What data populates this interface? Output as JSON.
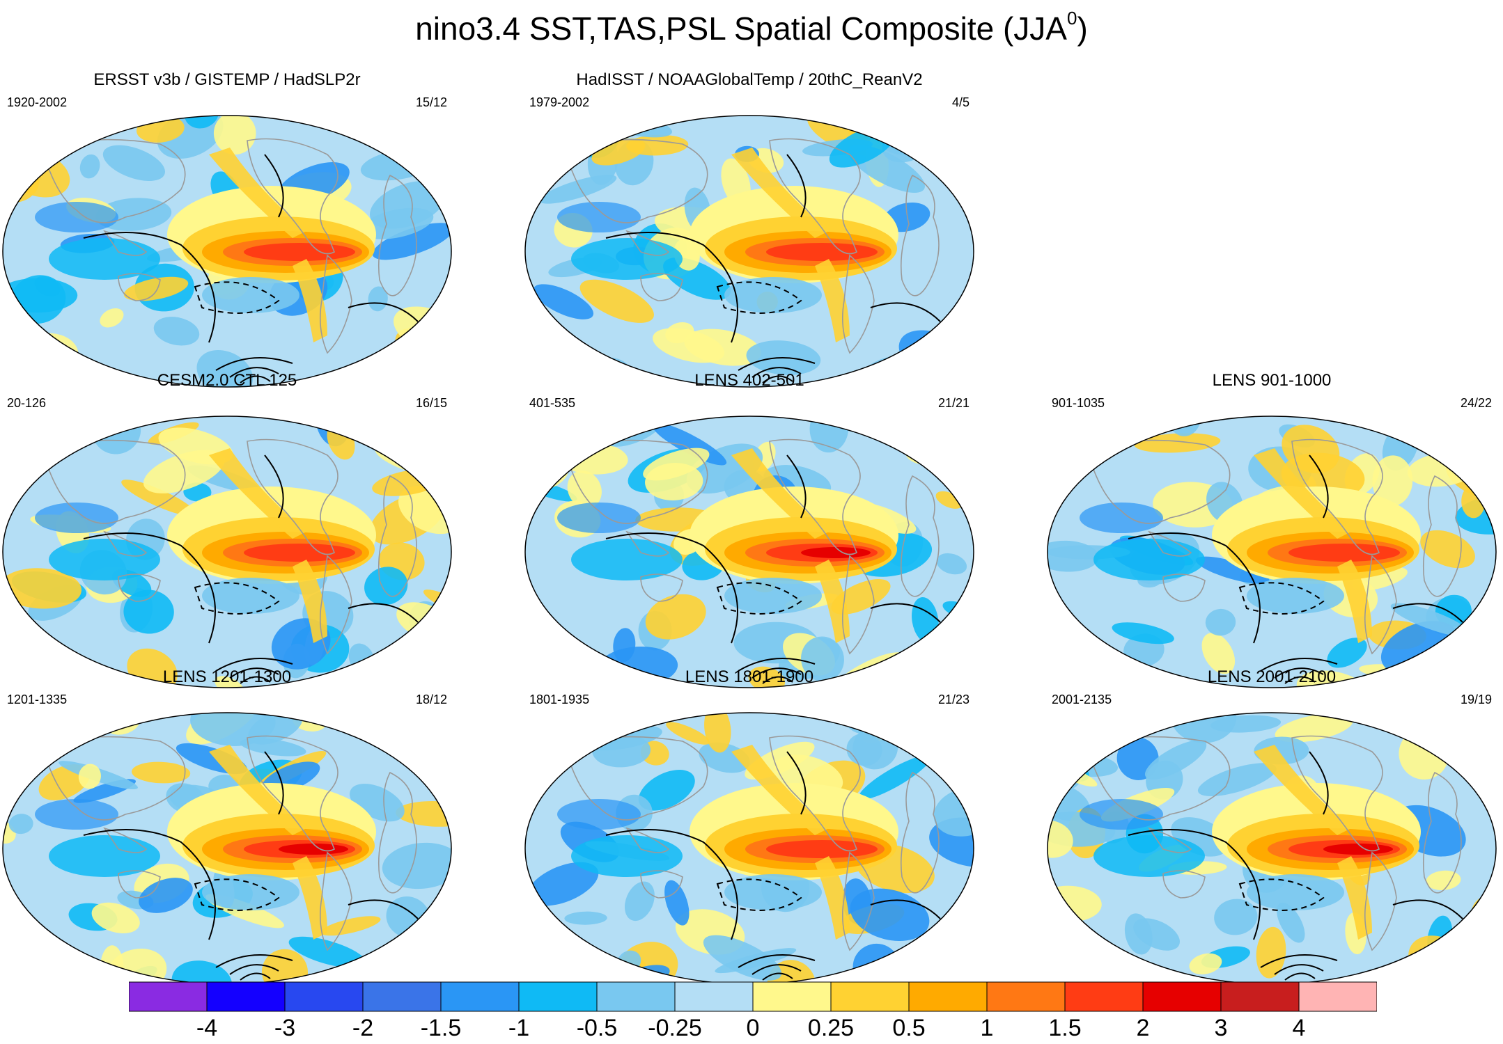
{
  "title": {
    "main": "nino3.4 SST,TAS,PSL Spatial Composite (JJA",
    "superscript": "0",
    "close": ")"
  },
  "panels": [
    {
      "id": "obs1",
      "title": "ERSST v3b / GISTEMP / HadSLP2r",
      "range": "1920-2002",
      "count": "15/12"
    },
    {
      "id": "obs2",
      "title": "HadISST / NOAAGlobalTemp / 20thC_ReanV2",
      "range": "1979-2002",
      "count": "4/5"
    },
    {
      "id": "ctl",
      "title": "CESM2.0 CTL 125",
      "range": "20-126",
      "count": "16/15"
    },
    {
      "id": "lens402",
      "title": "LENS 402-501",
      "range": "401-535",
      "count": "21/21"
    },
    {
      "id": "lens901",
      "title": "LENS 901-1000",
      "range": "901-1035",
      "count": "24/22"
    },
    {
      "id": "lens1201",
      "title": "LENS 1201-1300",
      "range": "1201-1335",
      "count": "18/12"
    },
    {
      "id": "lens1801",
      "title": "LENS 1801-1900",
      "range": "1801-1935",
      "count": "21/23"
    },
    {
      "id": "lens2001",
      "title": "LENS 2001-2100",
      "range": "2001-2135",
      "count": "19/19"
    }
  ],
  "colorbar": {
    "labels": [
      "-4",
      "-3",
      "-2",
      "-1.5",
      "-1",
      "-0.5",
      "-0.25",
      "0",
      "0.25",
      "0.5",
      "1",
      "1.5",
      "2",
      "3",
      "4"
    ],
    "colors": [
      "#8a2be2",
      "#1400ff",
      "#2848f0",
      "#3a74e8",
      "#2a96f5",
      "#0fbaf5",
      "#79c8f0",
      "#b4def5",
      "#fff88c",
      "#ffd232",
      "#ffaa00",
      "#ff7814",
      "#ff3c14",
      "#e60000",
      "#c81e1e",
      "#ffb4b4"
    ]
  },
  "chart_data": {
    "type": "heatmap",
    "title": "nino3.4 SST,TAS,PSL Spatial Composite (JJA0)",
    "variables": [
      "SST",
      "TAS",
      "PSL"
    ],
    "season": "JJA0",
    "projection": "Robinson global maps (8 panels)",
    "color_levels": [
      -4,
      -3,
      -2,
      -1.5,
      -1,
      -0.5,
      -0.25,
      0,
      0.25,
      0.5,
      1,
      1.5,
      2,
      3,
      4
    ],
    "panels": [
      {
        "title": "ERSST v3b / GISTEMP / HadSLP2r",
        "range": "1920-2002",
        "count": "15/12",
        "nino_peak": 2
      },
      {
        "title": "HadISST / NOAAGlobalTemp / 20thC_ReanV2",
        "range": "1979-2002",
        "count": "4/5",
        "nino_peak": 2
      },
      {
        "title": "CESM2.0 CTL 125",
        "range": "20-126",
        "count": "16/15",
        "nino_peak": 2
      },
      {
        "title": "LENS 402-501",
        "range": "401-535",
        "count": "21/21",
        "nino_peak": 3
      },
      {
        "title": "LENS 901-1000",
        "range": "901-1035",
        "count": "24/22",
        "nino_peak": 2
      },
      {
        "title": "LENS 1201-1300",
        "range": "1201-1335",
        "count": "18/12",
        "nino_peak": 3
      },
      {
        "title": "LENS 1801-1900",
        "range": "1801-1935",
        "count": "21/23",
        "nino_peak": 2
      },
      {
        "title": "LENS 2001-2100",
        "range": "2001-2135",
        "count": "19/19",
        "nino_peak": 3
      }
    ]
  }
}
